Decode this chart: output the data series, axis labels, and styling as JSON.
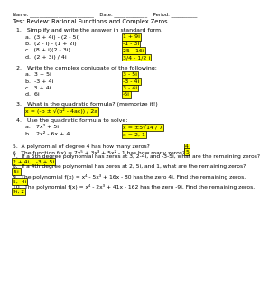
{
  "header": "Name: ___________________________    Date: ______________    Period: ___________",
  "title": "Test Review: Rational Functions and Complex Zeros",
  "bg_color": "#ffffff",
  "box_color": "#ffff00",
  "font_size": 4.5,
  "header_font_size": 3.8,
  "title_font_size": 4.8,
  "section1_header": "1.   Simplify and write the answer in standard form.",
  "section1_items": [
    {
      "label": "a.  (3 + 4i) - (2 - 5i)",
      "answer": "1 + 9i"
    },
    {
      "label": "b.  (2 - i) - (1 + 2i)",
      "answer": "-1 - 3i"
    },
    {
      "label": "c.  (8 + i)(2 - 3i)",
      "answer": "25 - 16i"
    },
    {
      "label": "d.  (2 + 3i) / 4i",
      "answer": "3/4 - 1/2 i"
    }
  ],
  "section2_header": "2.   Write the complex conjugate of the following:",
  "section2_items": [
    {
      "label": "a.  3 + 5i",
      "answer": "3 - 5i"
    },
    {
      "label": "b.  -3 + 4i",
      "answer": "-3 - 4i"
    },
    {
      "label": "c.  3 + 4i",
      "answer": "3 - 4i"
    },
    {
      "label": "d.  6i",
      "answer": "-6i"
    }
  ],
  "section3_q": "3.   What is the quadratic formula? (memorize it!)",
  "section3_ans": "x = (-b ± √(b² - 4ac)) / 2a",
  "section4_header": "4.   Use the quadratic formula to solve:",
  "section4_items": [
    {
      "label": "a.   7x² + 5i",
      "answer": "x = ±5√14 / 7"
    },
    {
      "label": "b.   2x² - 6x + 4",
      "answer": "x = 2, 1"
    }
  ],
  "section5": {
    "q": "5.  A polynomial of degree 4 has how many zeros?",
    "ans": "4"
  },
  "section6": {
    "q": "6.  The function f(x) = 7x⁵ + 3x³ + 5x² - 1 has how many zeros?",
    "ans": "5"
  },
  "section7": {
    "q": "7.  If a 5th degree polynomial has zeros at 3, 2-4i, and -3-5i, what are the remaining zeros?",
    "ans": "2 + 4i,   -3 + 5i"
  },
  "section8": {
    "q": "8.  If a 4th degree polynomial has zeros at 2, 5i, and 1, what are the remaining zeros?",
    "ans": "-5i"
  },
  "section9": {
    "q": "9.  The polynomial f(x) = x⁴ - 5x³ + 16x - 80 has the zero 4i. Find the remaining zeros.",
    "ans": "5, -4i"
  },
  "section10": {
    "q": "10.  The polynomial f(x) = x⁴ - 2x³ + 41x - 162 has the zero -9i. Find the remaining zeros.",
    "ans": "9i, 2"
  }
}
